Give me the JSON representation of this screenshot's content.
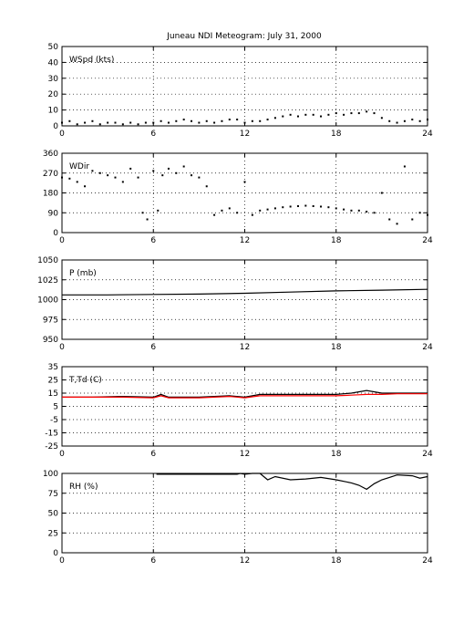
{
  "figure": {
    "title": "Juneau NDI Meteogram:        July 31, 2000"
  },
  "chart_data": [
    {
      "type": "scatter",
      "label": "WSpd (kts)",
      "xlim": [
        0,
        24
      ],
      "ylim": [
        0,
        50
      ],
      "xticks": [
        "0",
        "6",
        "12",
        "18",
        "24"
      ],
      "yticks": [
        "0",
        "10",
        "20",
        "30",
        "40",
        "50"
      ],
      "grid": true,
      "series": [
        {
          "color": "#000000",
          "x": [
            0,
            0.5,
            1,
            1.5,
            2,
            2.5,
            3,
            3.5,
            4,
            4.5,
            5,
            5.5,
            6,
            6.5,
            7,
            7.5,
            8,
            8.5,
            9,
            9.5,
            10,
            10.5,
            11,
            11.5,
            12,
            12.5,
            13,
            13.5,
            14,
            14.5,
            15,
            15.5,
            16,
            16.5,
            17,
            17.5,
            18,
            18.5,
            19,
            19.5,
            20,
            20.5,
            21,
            21.5,
            22,
            22.5,
            23,
            23.5,
            24
          ],
          "y": [
            2,
            3,
            1,
            2,
            3,
            1,
            2,
            2,
            1,
            2,
            1,
            2,
            2,
            3,
            2,
            3,
            4,
            3,
            2,
            3,
            2,
            3,
            4,
            4,
            2,
            3,
            3,
            4,
            5,
            6,
            7,
            6,
            7,
            7,
            6,
            7,
            8,
            7,
            8,
            8,
            9,
            8,
            5,
            3,
            2,
            3,
            4,
            3,
            4
          ]
        }
      ]
    },
    {
      "type": "scatter",
      "label": "WDir",
      "xlim": [
        0,
        24
      ],
      "ylim": [
        0,
        360
      ],
      "xticks": [
        "0",
        "6",
        "12",
        "18",
        "24"
      ],
      "yticks": [
        "0",
        "90",
        "180",
        "270",
        "360"
      ],
      "grid": true,
      "series": [
        {
          "color": "#000000",
          "x": [
            0,
            0.5,
            1,
            1.5,
            2,
            2.5,
            3,
            3.5,
            4,
            4.5,
            5,
            5.3,
            5.6,
            6,
            6.3,
            6.6,
            7,
            7.5,
            8,
            8.5,
            9,
            9.5,
            10,
            10.5,
            11,
            11.5,
            12,
            12.5,
            13,
            13.5,
            14,
            14.5,
            15,
            15.5,
            16,
            16.5,
            17,
            17.5,
            18,
            18.5,
            19,
            19.5,
            20,
            20.5,
            21,
            21.5,
            22,
            22.5,
            23,
            23.5,
            24
          ],
          "y": [
            250,
            245,
            230,
            210,
            280,
            270,
            260,
            250,
            230,
            290,
            250,
            90,
            60,
            280,
            100,
            260,
            290,
            270,
            300,
            260,
            250,
            210,
            80,
            100,
            110,
            90,
            230,
            80,
            100,
            105,
            110,
            115,
            118,
            120,
            122,
            120,
            118,
            115,
            110,
            105,
            100,
            100,
            95,
            90,
            180,
            60,
            40,
            300,
            60,
            90,
            80
          ]
        }
      ]
    },
    {
      "type": "line",
      "label": "P (mb)",
      "xlim": [
        0,
        24
      ],
      "ylim": [
        950,
        1050
      ],
      "xticks": [
        "0",
        "6",
        "12",
        "18",
        "24"
      ],
      "yticks": [
        "950",
        "975",
        "1000",
        "1025",
        "1050"
      ],
      "grid": true,
      "series": [
        {
          "color": "#000000",
          "x": [
            0,
            3,
            6,
            9,
            12,
            15,
            18,
            21,
            24
          ],
          "y": [
            1006,
            1006,
            1006.5,
            1007,
            1008,
            1009.5,
            1011,
            1012,
            1013
          ]
        }
      ]
    },
    {
      "type": "line",
      "label": "T,Td (C)",
      "xlim": [
        0,
        24
      ],
      "ylim": [
        -25,
        35
      ],
      "xticks": [
        "0",
        "6",
        "12",
        "18",
        "24"
      ],
      "yticks": [
        "-25",
        "-15",
        "-5",
        "5",
        "15",
        "25",
        "35"
      ],
      "grid": true,
      "series": [
        {
          "color": "#000000",
          "x": [
            0,
            2,
            4,
            6,
            6.5,
            7,
            9,
            11,
            12,
            13,
            14,
            16,
            18,
            19,
            20,
            21,
            22,
            24
          ],
          "y": [
            12,
            12,
            12.5,
            12,
            14,
            12,
            12,
            13,
            12,
            14,
            14,
            14,
            14,
            15,
            17,
            15,
            15,
            15
          ]
        },
        {
          "color": "#ff0000",
          "x": [
            0,
            2,
            4,
            6,
            6.5,
            7,
            9,
            11,
            12,
            13,
            14,
            16,
            18,
            19,
            20,
            21,
            22,
            24
          ],
          "y": [
            12,
            12,
            12,
            11.5,
            13,
            11.5,
            11.5,
            12.5,
            11.5,
            13,
            13,
            13,
            13,
            13.5,
            14,
            14,
            14.5,
            14.5
          ]
        }
      ]
    },
    {
      "type": "line",
      "label": "RH (%)",
      "xlim": [
        0,
        24
      ],
      "ylim": [
        0,
        100
      ],
      "xticks": [
        "0",
        "6",
        "12",
        "18",
        "24"
      ],
      "yticks": [
        "0",
        "25",
        "50",
        "75",
        "100"
      ],
      "grid": true,
      "series": [
        {
          "color": "#000000",
          "x": [
            6.2,
            6.4,
            11.5,
            11.7,
            12,
            12.5,
            13,
            13.5,
            14,
            15,
            16,
            17,
            18,
            19,
            19.5,
            20,
            20.5,
            21,
            21.5,
            22,
            23,
            23.5,
            24
          ],
          "y": [
            99,
            99,
            99,
            100,
            99,
            100,
            100,
            92,
            96,
            92,
            93,
            95,
            92,
            88,
            85,
            80,
            87,
            92,
            95,
            98,
            97,
            94,
            96
          ]
        }
      ]
    }
  ]
}
